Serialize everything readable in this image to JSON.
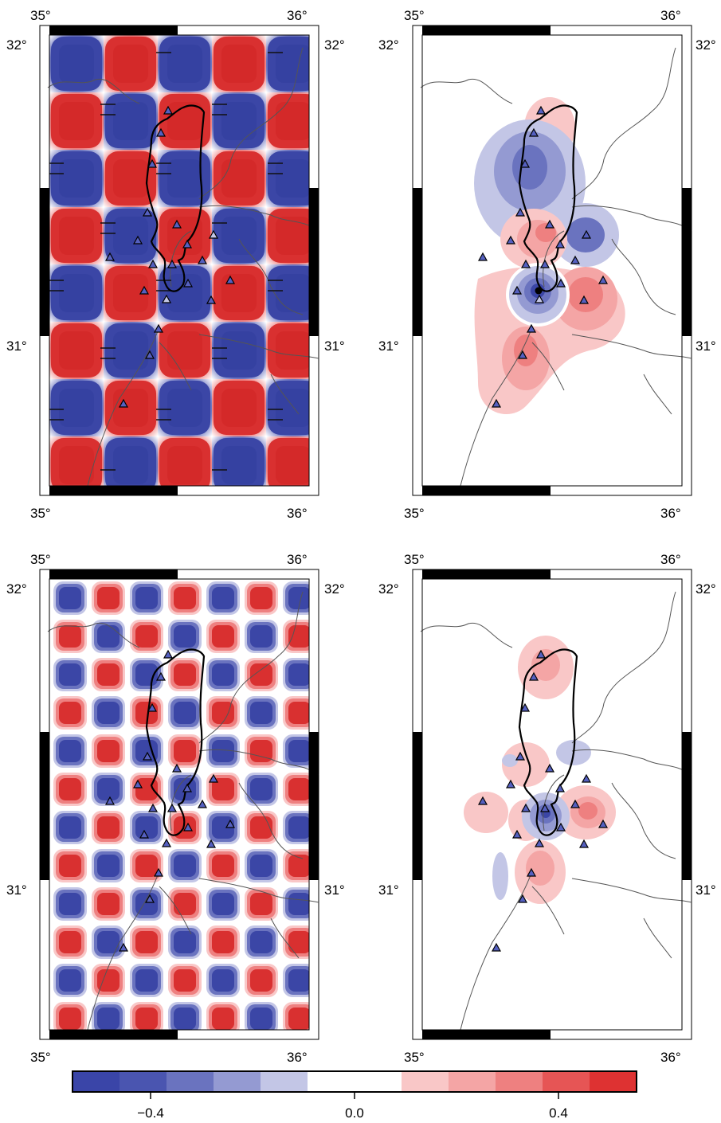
{
  "panels": [
    {
      "id": "top-left",
      "kind": "checkerboard",
      "lon_labels": [
        "35°",
        "36°"
      ],
      "lat_labels": [
        "32°",
        "31°"
      ],
      "pattern": "coarse checkerboard input model",
      "sign_markers": "minus signs in blue cells"
    },
    {
      "id": "top-right",
      "kind": "recovered",
      "lon_labels": [
        "35°",
        "36°"
      ],
      "lat_labels": [
        "32°",
        "31°"
      ],
      "pattern": "recovered coarse checkerboard"
    },
    {
      "id": "bottom-left",
      "kind": "checkerboard",
      "lon_labels": [
        "35°",
        "36°"
      ],
      "lat_labels": [
        "32°",
        "31°"
      ],
      "pattern": "fine checkerboard input model"
    },
    {
      "id": "bottom-right",
      "kind": "recovered",
      "lon_labels": [
        "35°",
        "36°"
      ],
      "lat_labels": [
        "32°",
        "31°"
      ],
      "pattern": "recovered fine checkerboard"
    }
  ],
  "colorbar": {
    "tick_labels": [
      "−0.4",
      "0.0",
      "0.4"
    ],
    "range": [
      -0.55,
      0.55
    ],
    "colors": [
      "#3a45a8",
      "#4a55b0",
      "#6a73bf",
      "#949ad2",
      "#c3c6e6",
      "#ffffff",
      "#ffffff",
      "#f9c7c7",
      "#f4a5a5",
      "#ee8080",
      "#e65555",
      "#de3232"
    ]
  },
  "colors": {
    "blue": "#3d4aa8",
    "red": "#dc3232",
    "station_fill": "#5560c0",
    "outline": "#000000",
    "river": "#777777"
  },
  "symbols": {
    "station": "triangle-icon",
    "event": "circle-icon"
  }
}
